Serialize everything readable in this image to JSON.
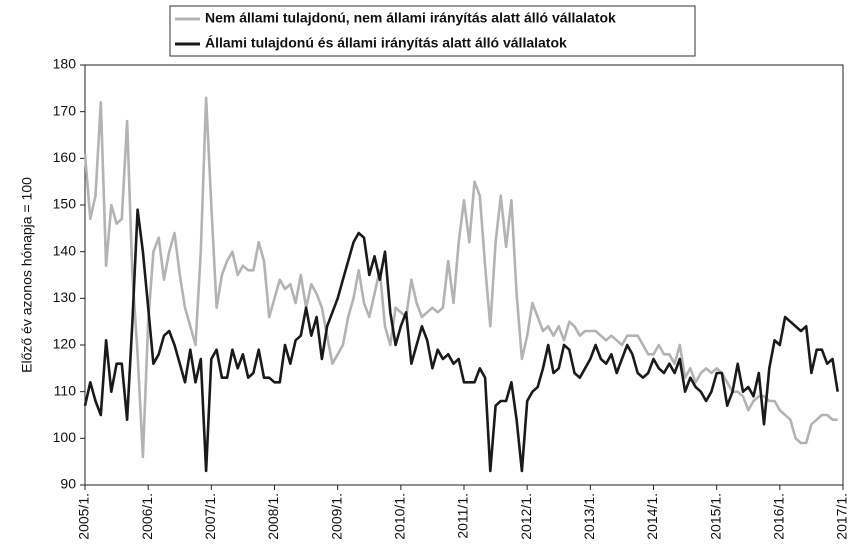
{
  "chart_data": {
    "type": "line",
    "ylabel": "Előző év azonos hónapja = 100",
    "categories": [
      "2005/1.",
      null,
      null,
      null,
      null,
      null,
      null,
      null,
      null,
      null,
      null,
      null,
      "2006/1.",
      null,
      null,
      null,
      null,
      null,
      null,
      null,
      null,
      null,
      null,
      null,
      "2007/1.",
      null,
      null,
      null,
      null,
      null,
      null,
      null,
      null,
      null,
      null,
      null,
      "2008/1.",
      null,
      null,
      null,
      null,
      null,
      null,
      null,
      null,
      null,
      null,
      null,
      "2009/1.",
      null,
      null,
      null,
      null,
      null,
      null,
      null,
      null,
      null,
      null,
      null,
      "2010/1.",
      null,
      null,
      null,
      null,
      null,
      null,
      null,
      null,
      null,
      null,
      null,
      "2011/1.",
      null,
      null,
      null,
      null,
      null,
      null,
      null,
      null,
      null,
      null,
      null,
      "2012/1.",
      null,
      null,
      null,
      null,
      null,
      null,
      null,
      null,
      null,
      null,
      null,
      "2013/1.",
      null,
      null,
      null,
      null,
      null,
      null,
      null,
      null,
      null,
      null,
      null,
      "2014/1.",
      null,
      null,
      null,
      null,
      null,
      null,
      null,
      null,
      null,
      null,
      null,
      "2015/1.",
      null,
      null,
      null,
      null,
      null,
      null,
      null,
      null,
      null,
      null,
      null,
      "2016/1.",
      null,
      null,
      null,
      null,
      null,
      null,
      null,
      null,
      null,
      null,
      null,
      "2017/1."
    ],
    "series": [
      {
        "name": "Nem állami tulajdonú, nem állami irányítás alatt álló vállalatok",
        "color": "#b3b3b3",
        "values": [
          161,
          147,
          152,
          172,
          137,
          150,
          146,
          147,
          168,
          135,
          118,
          96,
          125,
          140,
          143,
          134,
          140,
          144,
          135,
          128,
          124,
          120,
          140,
          173,
          150,
          128,
          135,
          138,
          140,
          135,
          137,
          136,
          136,
          142,
          138,
          126,
          130,
          134,
          132,
          133,
          129,
          135,
          128,
          133,
          131,
          128,
          122,
          116,
          118,
          120,
          126,
          130,
          136,
          129,
          126,
          131,
          136,
          124,
          120,
          128,
          127,
          126,
          134,
          129,
          126,
          127,
          128,
          127,
          128,
          138,
          129,
          142,
          151,
          142,
          155,
          152,
          137,
          124,
          142,
          152,
          141,
          151,
          131,
          117,
          122,
          129,
          126,
          123,
          124,
          122,
          124,
          121,
          125,
          124,
          122,
          123,
          123,
          123,
          122,
          121,
          122,
          121,
          120,
          122,
          122,
          122,
          120,
          118,
          118,
          120,
          118,
          118,
          116,
          120,
          113,
          115,
          112,
          114,
          115,
          114,
          115,
          114,
          112,
          110,
          110,
          109,
          106,
          108,
          109,
          109,
          108,
          108,
          106,
          105,
          104,
          100,
          99,
          99,
          103,
          104,
          105,
          105,
          104,
          104,
          null
        ]
      },
      {
        "name": "Állami tulajdonú és állami irányítás alatt álló vállalatok",
        "color": "#1a1a1a",
        "values": [
          107,
          112,
          108,
          105,
          121,
          110,
          116,
          116,
          104,
          125,
          149,
          140,
          128,
          116,
          118,
          122,
          123,
          120,
          116,
          112,
          119,
          112,
          117,
          93,
          117,
          119,
          113,
          113,
          119,
          115,
          118,
          113,
          114,
          119,
          113,
          113,
          112,
          112,
          120,
          116,
          121,
          122,
          128,
          122,
          126,
          117,
          124,
          127,
          130,
          134,
          138,
          142,
          144,
          143,
          135,
          139,
          134,
          140,
          127,
          120,
          124,
          127,
          116,
          120,
          124,
          121,
          115,
          119,
          117,
          118,
          116,
          117,
          112,
          112,
          112,
          115,
          113,
          93,
          107,
          108,
          108,
          112,
          104,
          93,
          108,
          110,
          111,
          115,
          120,
          114,
          115,
          120,
          119,
          114,
          113,
          115,
          117,
          120,
          117,
          116,
          118,
          114,
          117,
          120,
          118,
          114,
          113,
          114,
          117,
          115,
          114,
          116,
          114,
          117,
          110,
          113,
          111,
          110,
          108,
          110,
          114,
          114,
          107,
          110,
          116,
          110,
          111,
          109,
          114,
          103,
          115,
          121,
          120,
          126,
          125,
          124,
          123,
          124,
          114,
          119,
          119,
          116,
          117,
          110,
          null
        ]
      }
    ],
    "ylim": [
      90,
      180
    ],
    "yticks": [
      90,
      100,
      110,
      120,
      130,
      140,
      150,
      160,
      170,
      180
    ],
    "grid": false
  }
}
